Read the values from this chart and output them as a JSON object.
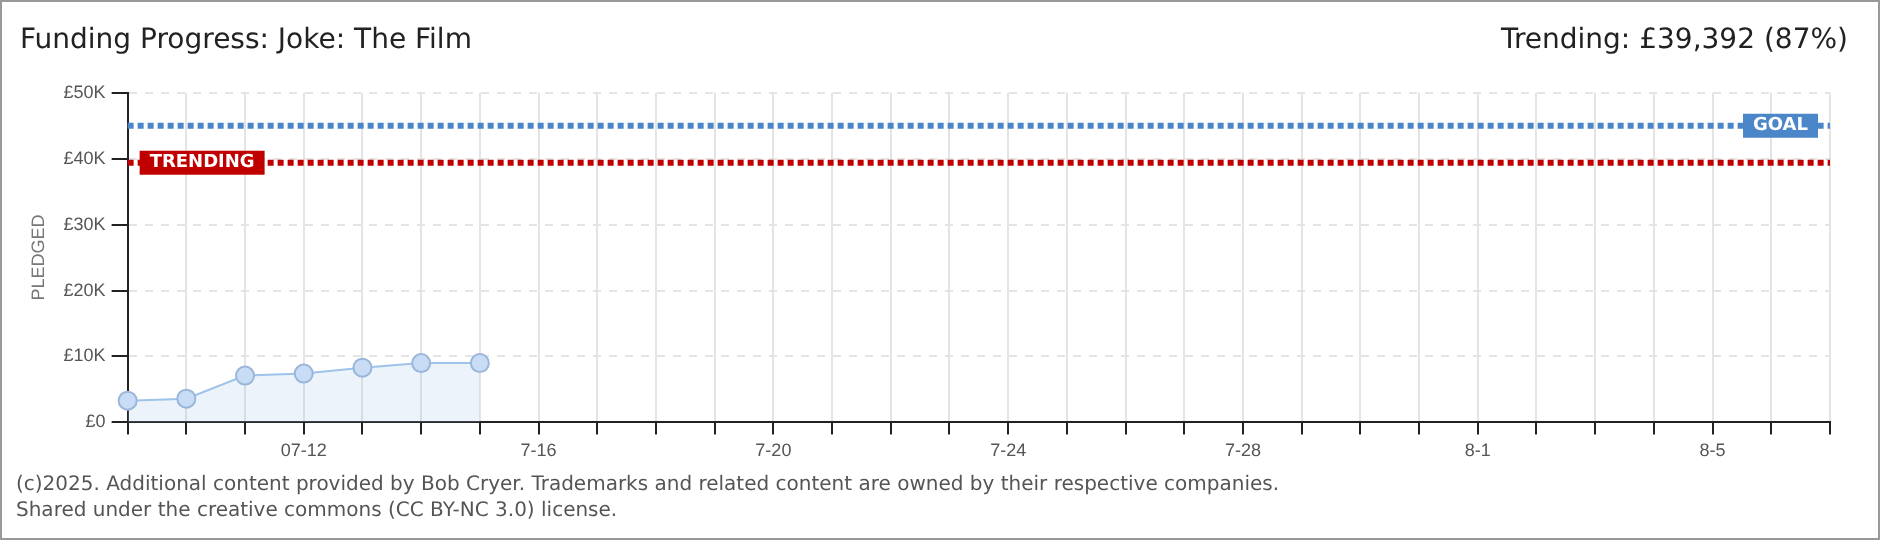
{
  "chart_data": {
    "type": "area",
    "title": "Funding Progress: Joke: The Film",
    "subtitle": "Trending: £39,392 (87%)",
    "ylabel": "PLEDGED",
    "categories": [
      null,
      null,
      null,
      "07-12",
      null,
      null,
      null,
      "7-16",
      null,
      null,
      null,
      "7-20",
      null,
      null,
      null,
      "7-24",
      null,
      null,
      null,
      "7-28",
      null,
      null,
      null,
      "8-1",
      null,
      null,
      null,
      "8-5",
      null,
      null
    ],
    "values": [
      3300,
      3600,
      7100,
      7400,
      8300,
      9000,
      9000,
      null,
      null,
      null,
      null,
      null,
      null,
      null,
      null,
      null,
      null,
      null,
      null,
      null,
      null,
      null,
      null,
      null,
      null,
      null,
      null,
      null,
      null,
      null
    ],
    "color": "#9ec3ea",
    "marker": "circle",
    "grid": true,
    "ylim": [
      0,
      50000
    ],
    "yticks": [
      {
        "value": 0,
        "label": "£0"
      },
      {
        "value": 10000,
        "label": "£10K"
      },
      {
        "value": 20000,
        "label": "£20K"
      },
      {
        "value": 30000,
        "label": "£30K"
      },
      {
        "value": 40000,
        "label": "£40K"
      },
      {
        "value": 50000,
        "label": "£50K"
      }
    ],
    "ref_lines": [
      {
        "axis": "y",
        "value": 45000,
        "label": "GOAL",
        "color": "#4a86c8",
        "line_style": "dotted"
      },
      {
        "axis": "y",
        "value": 39392,
        "label": "TRENDING",
        "color": "#c00000",
        "line_style": "dotted"
      }
    ],
    "annotations": [
      "(c)2025. Additional content provided by Bob Cryer. Trademarks and related content are owned by their respective companies.",
      "Shared under the creative commons (CC BY-NC 3.0) license."
    ]
  }
}
